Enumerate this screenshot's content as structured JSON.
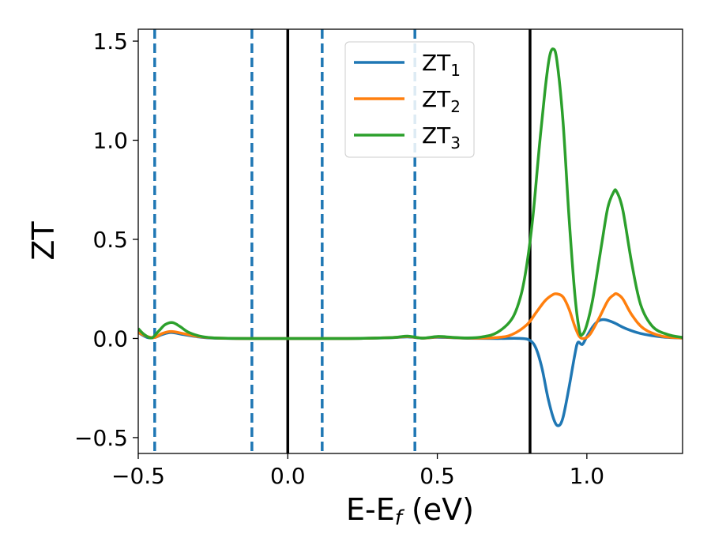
{
  "chart_data": {
    "type": "line",
    "title": "",
    "xlabel": "E-E",
    "xlabel_sub": "f",
    "xlabel_unit": " (eV)",
    "ylabel": "ZT",
    "xlim": [
      -0.5,
      1.32
    ],
    "ylim": [
      -0.58,
      1.56
    ],
    "xticks": [
      -0.5,
      0.0,
      0.5,
      1.0
    ],
    "xtick_labels": [
      "−0.5",
      "0.0",
      "0.5",
      "1.0"
    ],
    "yticks": [
      -0.5,
      0.0,
      0.5,
      1.0,
      1.5
    ],
    "ytick_labels": [
      "−0.5",
      "0.0",
      "0.5",
      "1.0",
      "1.5"
    ],
    "legend_position": "top-center",
    "grid": false,
    "vlines_dashed": {
      "x": [
        -0.445,
        -0.12,
        0.115,
        0.425
      ],
      "color": "#1f77b4"
    },
    "vlines_solid": {
      "x": [
        0.0,
        0.81
      ],
      "color": "#000000"
    },
    "series": [
      {
        "name": "ZT",
        "subscript": "1",
        "color": "#1f77b4",
        "points": [
          [
            -0.5,
            0.03
          ],
          [
            -0.47,
            0.005
          ],
          [
            -0.445,
            0.005
          ],
          [
            -0.42,
            0.02
          ],
          [
            -0.39,
            0.03
          ],
          [
            -0.35,
            0.02
          ],
          [
            -0.3,
            0.008
          ],
          [
            -0.25,
            0.002
          ],
          [
            -0.15,
            0.0
          ],
          [
            0.0,
            0.0
          ],
          [
            0.2,
            0.0
          ],
          [
            0.35,
            0.004
          ],
          [
            0.4,
            0.008
          ],
          [
            0.45,
            0.002
          ],
          [
            0.5,
            0.006
          ],
          [
            0.55,
            0.004
          ],
          [
            0.6,
            0.001
          ],
          [
            0.7,
            0.0
          ],
          [
            0.78,
            0.0
          ],
          [
            0.81,
            -0.01
          ],
          [
            0.83,
            -0.05
          ],
          [
            0.85,
            -0.15
          ],
          [
            0.87,
            -0.3
          ],
          [
            0.89,
            -0.41
          ],
          [
            0.905,
            -0.44
          ],
          [
            0.92,
            -0.4
          ],
          [
            0.94,
            -0.25
          ],
          [
            0.96,
            -0.08
          ],
          [
            0.97,
            -0.02
          ],
          [
            0.985,
            -0.03
          ],
          [
            1.0,
            0.01
          ],
          [
            1.02,
            0.06
          ],
          [
            1.04,
            0.09
          ],
          [
            1.06,
            0.095
          ],
          [
            1.09,
            0.08
          ],
          [
            1.13,
            0.05
          ],
          [
            1.18,
            0.025
          ],
          [
            1.25,
            0.008
          ],
          [
            1.32,
            0.002
          ]
        ]
      },
      {
        "name": "ZT",
        "subscript": "2",
        "color": "#ff7f0e",
        "points": [
          [
            -0.5,
            0.03
          ],
          [
            -0.47,
            0.01
          ],
          [
            -0.445,
            0.005
          ],
          [
            -0.42,
            0.025
          ],
          [
            -0.39,
            0.035
          ],
          [
            -0.35,
            0.025
          ],
          [
            -0.3,
            0.01
          ],
          [
            -0.25,
            0.003
          ],
          [
            -0.15,
            0.0
          ],
          [
            0.0,
            0.0
          ],
          [
            0.2,
            0.0
          ],
          [
            0.35,
            0.005
          ],
          [
            0.4,
            0.01
          ],
          [
            0.45,
            0.002
          ],
          [
            0.5,
            0.008
          ],
          [
            0.55,
            0.005
          ],
          [
            0.6,
            0.002
          ],
          [
            0.7,
            0.005
          ],
          [
            0.75,
            0.02
          ],
          [
            0.8,
            0.07
          ],
          [
            0.83,
            0.13
          ],
          [
            0.86,
            0.19
          ],
          [
            0.885,
            0.22
          ],
          [
            0.9,
            0.225
          ],
          [
            0.92,
            0.21
          ],
          [
            0.94,
            0.15
          ],
          [
            0.96,
            0.06
          ],
          [
            0.975,
            0.01
          ],
          [
            0.99,
            0.0
          ],
          [
            1.01,
            0.02
          ],
          [
            1.04,
            0.1
          ],
          [
            1.07,
            0.19
          ],
          [
            1.09,
            0.22
          ],
          [
            1.1,
            0.225
          ],
          [
            1.12,
            0.2
          ],
          [
            1.15,
            0.12
          ],
          [
            1.19,
            0.05
          ],
          [
            1.25,
            0.012
          ],
          [
            1.32,
            0.002
          ]
        ]
      },
      {
        "name": "ZT",
        "subscript": "3",
        "color": "#2ca02c",
        "points": [
          [
            -0.5,
            0.05
          ],
          [
            -0.48,
            0.02
          ],
          [
            -0.455,
            0.003
          ],
          [
            -0.43,
            0.04
          ],
          [
            -0.41,
            0.07
          ],
          [
            -0.385,
            0.08
          ],
          [
            -0.36,
            0.06
          ],
          [
            -0.33,
            0.03
          ],
          [
            -0.28,
            0.008
          ],
          [
            -0.2,
            0.001
          ],
          [
            0.0,
            0.0
          ],
          [
            0.2,
            0.0
          ],
          [
            0.35,
            0.005
          ],
          [
            0.4,
            0.012
          ],
          [
            0.45,
            0.002
          ],
          [
            0.5,
            0.01
          ],
          [
            0.55,
            0.006
          ],
          [
            0.6,
            0.003
          ],
          [
            0.65,
            0.008
          ],
          [
            0.7,
            0.03
          ],
          [
            0.75,
            0.1
          ],
          [
            0.78,
            0.22
          ],
          [
            0.8,
            0.38
          ],
          [
            0.82,
            0.62
          ],
          [
            0.84,
            0.95
          ],
          [
            0.86,
            1.25
          ],
          [
            0.875,
            1.42
          ],
          [
            0.888,
            1.46
          ],
          [
            0.9,
            1.4
          ],
          [
            0.92,
            1.1
          ],
          [
            0.94,
            0.62
          ],
          [
            0.96,
            0.22
          ],
          [
            0.975,
            0.04
          ],
          [
            0.985,
            0.02
          ],
          [
            1.0,
            0.07
          ],
          [
            1.02,
            0.2
          ],
          [
            1.05,
            0.48
          ],
          [
            1.07,
            0.66
          ],
          [
            1.09,
            0.74
          ],
          [
            1.1,
            0.74
          ],
          [
            1.12,
            0.65
          ],
          [
            1.15,
            0.38
          ],
          [
            1.18,
            0.17
          ],
          [
            1.22,
            0.06
          ],
          [
            1.27,
            0.02
          ],
          [
            1.32,
            0.005
          ]
        ]
      }
    ]
  }
}
